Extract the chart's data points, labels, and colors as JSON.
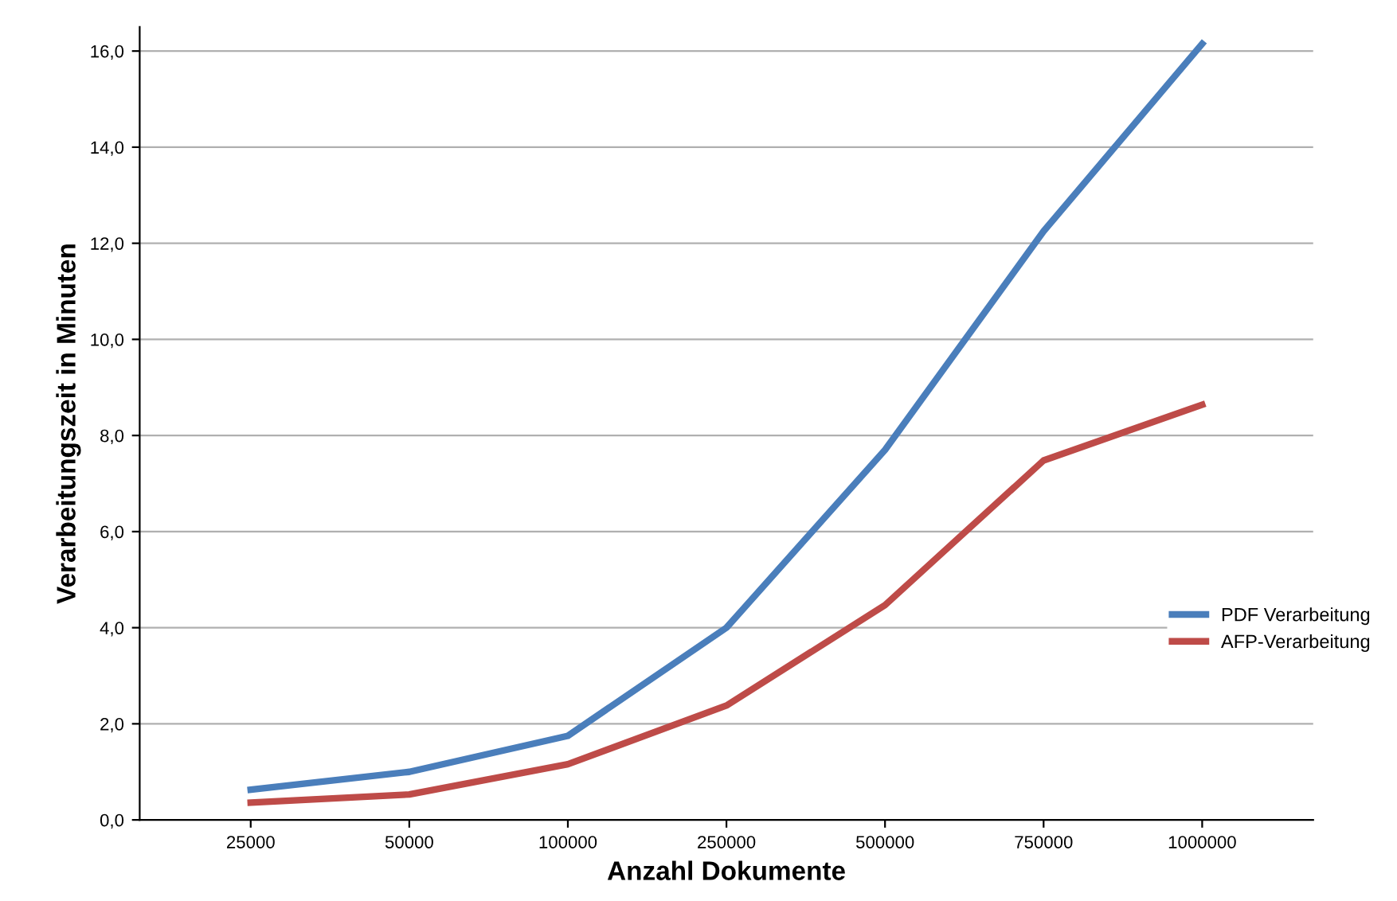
{
  "chart_data": {
    "type": "line",
    "xlabel": "Anzahl Dokumente",
    "ylabel": "Verarbeitungszeit in Minuten",
    "categories": [
      "25000",
      "50000",
      "100000",
      "250000",
      "500000",
      "750000",
      "1000000"
    ],
    "series": [
      {
        "name": "PDF Verarbeitung",
        "color": "#4a7ebb",
        "values": [
          0.63,
          1.0,
          1.75,
          4.0,
          7.7,
          12.25,
          16.15
        ]
      },
      {
        "name": "AFP-Verarbeitung",
        "color": "#be4b48",
        "values": [
          0.36,
          0.53,
          1.16,
          2.38,
          4.47,
          7.48,
          8.64
        ]
      }
    ],
    "ylim": [
      0,
      16.5
    ],
    "yticks": [
      {
        "value": 0,
        "label": "0,0"
      },
      {
        "value": 2,
        "label": "2,0"
      },
      {
        "value": 4,
        "label": "4,0"
      },
      {
        "value": 6,
        "label": "6,0"
      },
      {
        "value": 8,
        "label": "8,0"
      },
      {
        "value": 10,
        "label": "10,0"
      },
      {
        "value": 12,
        "label": "12,0"
      },
      {
        "value": 14,
        "label": "14,0"
      },
      {
        "value": 16,
        "label": "16,0"
      }
    ],
    "grid": "y",
    "legend": "right",
    "marker": "none",
    "line_style": "solid"
  }
}
